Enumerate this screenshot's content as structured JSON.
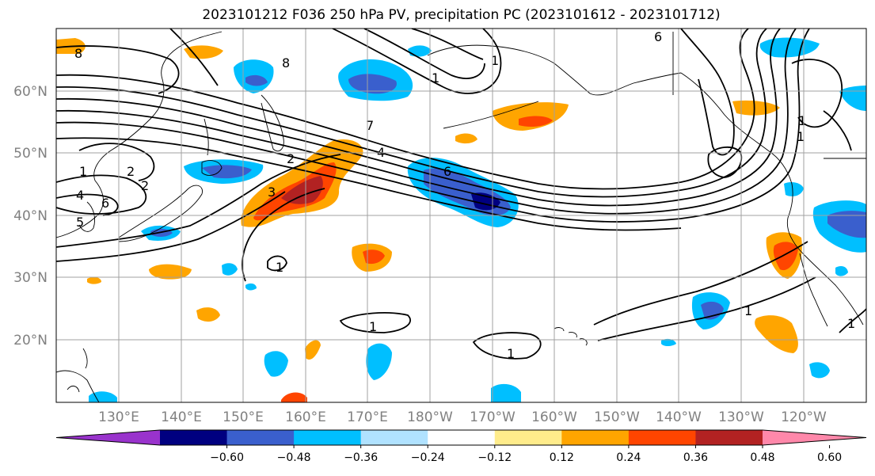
{
  "title": "2023101212 F036 250 hPa PV, precipitation PC (2023101612 - 2023101712)",
  "lat_labels": [
    "60°N",
    "50°N",
    "40°N",
    "30°N",
    "20°N"
  ],
  "lon_labels": [
    "130°E",
    "140°E",
    "150°E",
    "160°E",
    "170°E",
    "180°W",
    "170°W",
    "160°W",
    "150°W",
    "140°W",
    "130°W",
    "120°W"
  ],
  "colorbar": {
    "ticks": [
      "−0.60",
      "−0.48",
      "−0.36",
      "−0.24",
      "−0.12",
      "0.12",
      "0.24",
      "0.36",
      "0.48",
      "0.60"
    ],
    "colors": [
      "#9933cc",
      "#000080",
      "#3a5fcd",
      "#00bfff",
      "#b0e2ff",
      "#ffffff",
      "#ffec8b",
      "#ffa500",
      "#ff4500",
      "#b22222",
      "#ff88aa"
    ]
  },
  "contour_labels": [
    "8",
    "8",
    "6",
    "1",
    "2",
    "7",
    "4",
    "2",
    "3",
    "1",
    "2",
    "4",
    "6",
    "5",
    "1",
    "1",
    "1",
    "1",
    "1",
    "6",
    "1",
    "1",
    "1"
  ],
  "colors": {
    "axis_label": "#808080",
    "grid": "#a0a0a0",
    "coast": "#000000"
  }
}
